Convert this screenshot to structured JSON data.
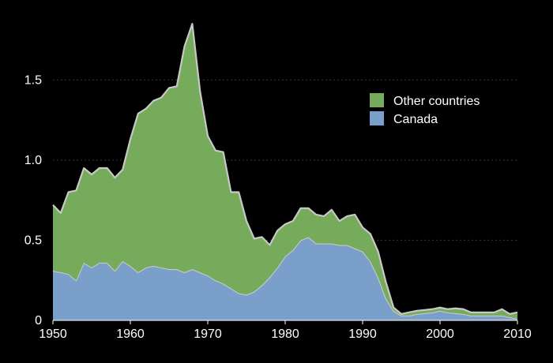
{
  "chart_data": {
    "type": "area",
    "stacked": true,
    "title": "",
    "xlabel": "",
    "ylabel": "",
    "xlim": [
      1950,
      2010
    ],
    "ylim": [
      0,
      1.9
    ],
    "x_ticks": [
      {
        "value": 1950,
        "label": "1950"
      },
      {
        "value": 1960,
        "label": "1960"
      },
      {
        "value": 1970,
        "label": "1970"
      },
      {
        "value": 1980,
        "label": "1980"
      },
      {
        "value": 1990,
        "label": "1990"
      },
      {
        "value": 2000,
        "label": "2000"
      },
      {
        "value": 2010,
        "label": "2010"
      }
    ],
    "y_ticks": [
      {
        "value": 0,
        "label": "0"
      },
      {
        "value": 0.5,
        "label": "0.5"
      },
      {
        "value": 1.0,
        "label": "1.0"
      },
      {
        "value": 1.5,
        "label": "1.5"
      }
    ],
    "grid": "horizontal dashed",
    "legend_position": "top-right",
    "x": [
      1950,
      1951,
      1952,
      1953,
      1954,
      1955,
      1956,
      1957,
      1958,
      1959,
      1960,
      1961,
      1962,
      1963,
      1964,
      1965,
      1966,
      1967,
      1968,
      1969,
      1970,
      1971,
      1972,
      1973,
      1974,
      1975,
      1976,
      1977,
      1978,
      1979,
      1980,
      1981,
      1982,
      1983,
      1984,
      1985,
      1986,
      1987,
      1988,
      1989,
      1990,
      1991,
      1992,
      1993,
      1994,
      1995,
      1996,
      1997,
      1998,
      1999,
      2000,
      2001,
      2002,
      2003,
      2004,
      2005,
      2006,
      2007,
      2008,
      2009,
      2010
    ],
    "series": [
      {
        "name": "Canada",
        "color": "#7b9fcb",
        "values": [
          0.31,
          0.3,
          0.29,
          0.25,
          0.36,
          0.33,
          0.36,
          0.36,
          0.31,
          0.37,
          0.34,
          0.3,
          0.33,
          0.34,
          0.33,
          0.32,
          0.32,
          0.3,
          0.32,
          0.3,
          0.28,
          0.25,
          0.23,
          0.2,
          0.17,
          0.16,
          0.18,
          0.22,
          0.27,
          0.33,
          0.4,
          0.44,
          0.5,
          0.52,
          0.48,
          0.48,
          0.48,
          0.47,
          0.47,
          0.45,
          0.43,
          0.37,
          0.27,
          0.14,
          0.06,
          0.03,
          0.03,
          0.04,
          0.045,
          0.05,
          0.06,
          0.05,
          0.045,
          0.04,
          0.03,
          0.03,
          0.03,
          0.03,
          0.03,
          0.02,
          0.01
        ]
      },
      {
        "name": "Other countries",
        "color": "#76ab5c",
        "values": [
          0.41,
          0.37,
          0.51,
          0.56,
          0.59,
          0.58,
          0.59,
          0.59,
          0.58,
          0.57,
          0.79,
          0.99,
          0.99,
          1.03,
          1.06,
          1.13,
          1.14,
          1.41,
          1.53,
          1.13,
          0.87,
          0.81,
          0.82,
          0.6,
          0.63,
          0.46,
          0.33,
          0.3,
          0.2,
          0.23,
          0.2,
          0.18,
          0.2,
          0.18,
          0.18,
          0.17,
          0.21,
          0.15,
          0.18,
          0.21,
          0.15,
          0.17,
          0.16,
          0.1,
          0.02,
          0.01,
          0.02,
          0.02,
          0.02,
          0.02,
          0.02,
          0.02,
          0.03,
          0.03,
          0.02,
          0.02,
          0.02,
          0.02,
          0.04,
          0.02,
          0.04
        ]
      }
    ]
  }
}
